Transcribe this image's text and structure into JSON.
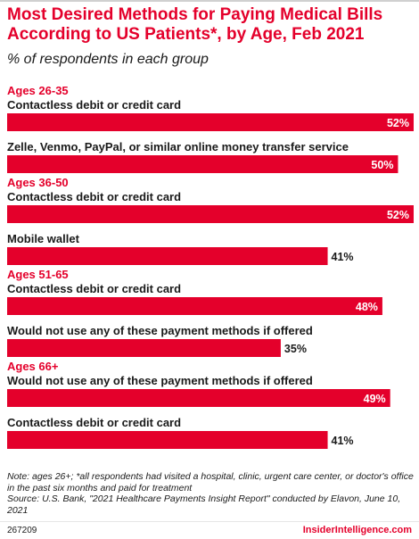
{
  "chart_data": {
    "type": "bar",
    "title": "Most Desired Methods for Paying Medical Bills According to US Patients*, by Age, Feb 2021",
    "subtitle": "% of respondents in each group",
    "unit": "%",
    "xlim": [
      0,
      52
    ],
    "grid": false,
    "bar_color": "#e4002b",
    "groups": [
      {
        "label": "Ages 26-35",
        "bars": [
          {
            "label": "Contactless debit or credit card",
            "value": 52
          },
          {
            "label": "Zelle, Venmo, PayPal, or similar online money transfer service",
            "value": 50
          }
        ]
      },
      {
        "label": "Ages 36-50",
        "bars": [
          {
            "label": "Contactless debit or credit card",
            "value": 52
          },
          {
            "label": "Mobile wallet",
            "value": 41
          }
        ]
      },
      {
        "label": "Ages 51-65",
        "bars": [
          {
            "label": "Contactless debit or credit card",
            "value": 48
          },
          {
            "label": "Would not use any of these payment methods if offered",
            "value": 35
          }
        ]
      },
      {
        "label": "Ages 66+",
        "bars": [
          {
            "label": "Would not use any of these payment methods if offered",
            "value": 49
          },
          {
            "label": "Contactless debit or credit card",
            "value": 41
          }
        ]
      }
    ]
  },
  "footnote": {
    "note": "Note: ages 26+; *all respondents had visited a hospital, clinic, urgent care center, or doctor's office in the past six months and paid for treatment",
    "source": "Source: U.S. Bank, \"2021 Healthcare Payments Insight Report\" conducted by Elavon, June 10, 2021"
  },
  "footer": {
    "chart_id": "267209",
    "brand": "InsiderIntelligence.com"
  },
  "colors": {
    "accent": "#e4002b",
    "text": "#1a1a1a"
  }
}
